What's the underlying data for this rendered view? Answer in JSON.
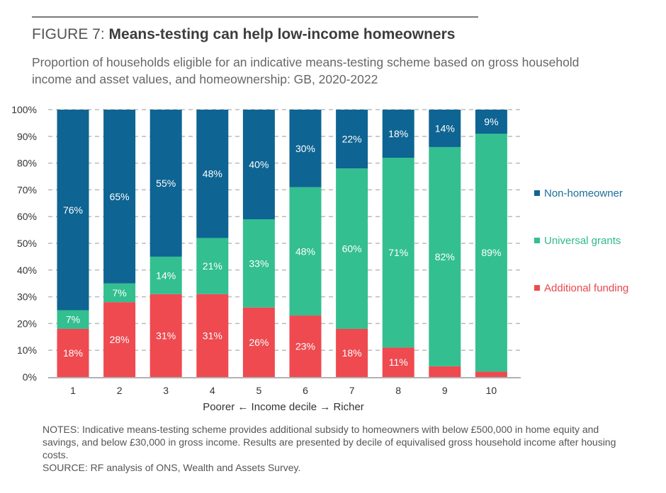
{
  "figure_label": "FIGURE 7:",
  "chart_data": {
    "type": "bar",
    "stacked": true,
    "title": "Means-testing can help low-income homeowners",
    "subtitle": "Proportion of households eligible for an indicative means-testing scheme based on gross household income and asset values, and homeownership: GB, 2020-2022",
    "xlabel": "Poorer ← Income decile → Richer",
    "ylabel": "",
    "ylim": [
      0,
      100
    ],
    "yticks": [
      "0%",
      "10%",
      "20%",
      "30%",
      "40%",
      "50%",
      "60%",
      "70%",
      "80%",
      "90%",
      "100%"
    ],
    "categories": [
      "1",
      "2",
      "3",
      "4",
      "5",
      "6",
      "7",
      "8",
      "9",
      "10"
    ],
    "legend_position": "right",
    "series": [
      {
        "name": "Additional funding",
        "color": "#ee4a50",
        "values": [
          18,
          28,
          31,
          31,
          26,
          23,
          18,
          11,
          4,
          2
        ],
        "labels": [
          "18%",
          "28%",
          "31%",
          "31%",
          "26%",
          "23%",
          "18%",
          "11%",
          "",
          ""
        ]
      },
      {
        "name": "Universal grants",
        "color": "#33bf90",
        "values": [
          7,
          7,
          14,
          21,
          33,
          48,
          60,
          71,
          82,
          89
        ],
        "labels": [
          "7%",
          "7%",
          "14%",
          "21%",
          "33%",
          "48%",
          "60%",
          "71%",
          "82%",
          "89%"
        ]
      },
      {
        "name": "Non-homeowner",
        "color": "#0e6492",
        "values": [
          76,
          65,
          55,
          48,
          40,
          30,
          22,
          18,
          14,
          9
        ],
        "labels": [
          "76%",
          "65%",
          "55%",
          "48%",
          "40%",
          "30%",
          "22%",
          "18%",
          "14%",
          "9%"
        ]
      }
    ],
    "legend": [
      {
        "name": "Non-homeowner",
        "color": "#0e6492",
        "text_color": "#1b6d98"
      },
      {
        "name": "Universal grants",
        "color": "#33bf90",
        "text_color": "#2fb98b"
      },
      {
        "name": "Additional funding",
        "color": "#ee4a50",
        "text_color": "#e8474d"
      }
    ]
  },
  "notes": "NOTES: Indicative means-testing scheme provides additional subsidy to homeowners with below £500,000 in home equity and savings, and below £30,000 in gross income. Results are presented by decile of equivalised gross household income after housing costs.",
  "source": "SOURCE: RF analysis of ONS, Wealth and Assets Survey."
}
